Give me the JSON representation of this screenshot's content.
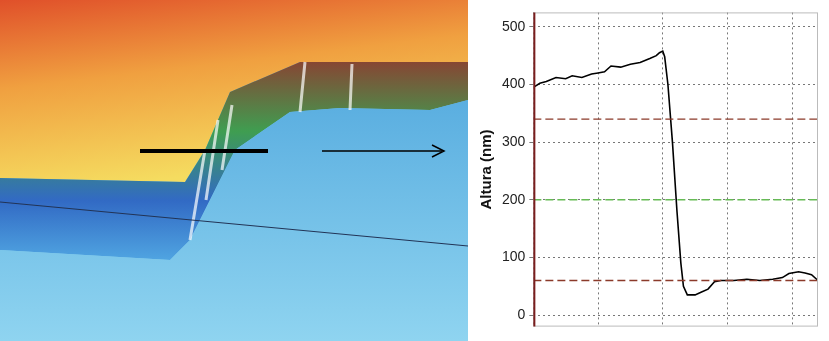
{
  "chart_data": {
    "type": "line",
    "y_label": "Altura (nm)",
    "x": [
      0,
      0.1,
      0.2,
      0.35,
      0.5,
      0.6,
      0.75,
      0.9,
      1.0,
      1.1,
      1.2,
      1.35,
      1.5,
      1.65,
      1.8,
      1.9,
      1.95,
      2.0,
      2.03,
      2.08,
      2.15,
      2.22,
      2.28,
      2.32,
      2.38,
      2.5,
      2.6,
      2.7,
      2.8,
      2.9,
      3.1,
      3.3,
      3.5,
      3.7,
      3.85,
      3.95,
      4.1,
      4.2,
      4.3,
      4.4
    ],
    "values": [
      395,
      402,
      405,
      412,
      410,
      415,
      412,
      418,
      420,
      422,
      432,
      430,
      435,
      438,
      445,
      450,
      455,
      458,
      448,
      400,
      300,
      180,
      90,
      50,
      35,
      35,
      40,
      45,
      58,
      60,
      60,
      62,
      60,
      62,
      65,
      72,
      75,
      73,
      70,
      60
    ],
    "color": "#000000",
    "xlim": [
      0,
      4.4
    ],
    "xticks": [
      0,
      1,
      2,
      3,
      4
    ],
    "ylim": [
      -20,
      525
    ],
    "yticks": [
      0,
      100,
      200,
      300,
      400,
      500
    ],
    "grid": true,
    "tick_labels": "y",
    "reference_lines": [
      {
        "value": 340,
        "color": "#8b3a2a",
        "line_style": "dashed"
      },
      {
        "value": 200,
        "color": "#66bb55",
        "line_style": "dashed"
      },
      {
        "value": 60,
        "color": "#8b3a2a",
        "line_style": "dashed"
      }
    ]
  }
}
